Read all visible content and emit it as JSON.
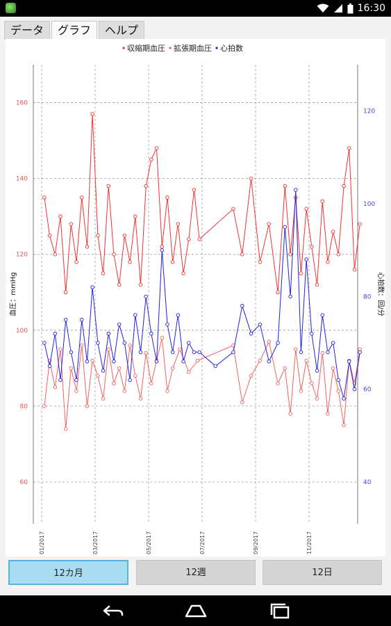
{
  "status_bar": {
    "time": "16:30",
    "icons": [
      "app-icon",
      "wifi-icon",
      "signal-icon",
      "battery-icon"
    ]
  },
  "tabs": [
    {
      "label": "データ",
      "active": false
    },
    {
      "label": "グラフ",
      "active": true
    },
    {
      "label": "ヘルプ",
      "active": false
    }
  ],
  "range_buttons": [
    {
      "label": "12カ月",
      "active": true
    },
    {
      "label": "12週",
      "active": false
    },
    {
      "label": "12日",
      "active": false
    }
  ],
  "nav_bar": {
    "icons": [
      "back-icon",
      "home-icon",
      "recents-icon"
    ]
  },
  "chart_data": {
    "type": "line",
    "legend": [
      "収縮期血圧",
      "拡張期血圧",
      "心拍数"
    ],
    "legend_placement": "top",
    "grid": true,
    "y_left": {
      "label": "血圧：mmHg",
      "range": [
        49,
        170
      ],
      "ticks": [
        60,
        80,
        100,
        120,
        140,
        160
      ],
      "color": "#e05555"
    },
    "y_right": {
      "label": "心拍数：回/分",
      "range": [
        31,
        130
      ],
      "ticks": [
        40,
        60,
        80,
        100,
        120
      ],
      "color": "#4444dd"
    },
    "x": {
      "ticks": [
        "01/2017",
        "03/2017",
        "05/2017",
        "07/2017",
        "09/2017",
        "11/2017"
      ]
    },
    "series": [
      {
        "name": "収縮期血圧",
        "axis": "left",
        "color": "#f03030",
        "points": [
          [
            "01/2017",
            135
          ],
          [
            "01/2017",
            125
          ],
          [
            "01/2017",
            120
          ],
          [
            "01/2017",
            130
          ],
          [
            "01/2017",
            110
          ],
          [
            "02/2017",
            128
          ],
          [
            "02/2017",
            118
          ],
          [
            "02/2017",
            135
          ],
          [
            "02/2017",
            122
          ],
          [
            "02/2017",
            157
          ],
          [
            "03/2017",
            125
          ],
          [
            "03/2017",
            115
          ],
          [
            "03/2017",
            138
          ],
          [
            "03/2017",
            120
          ],
          [
            "03/2017",
            112
          ],
          [
            "04/2017",
            125
          ],
          [
            "04/2017",
            118
          ],
          [
            "04/2017",
            130
          ],
          [
            "04/2017",
            112
          ],
          [
            "04/2017",
            138
          ],
          [
            "05/2017",
            145
          ],
          [
            "05/2017",
            148
          ],
          [
            "05/2017",
            122
          ],
          [
            "05/2017",
            135
          ],
          [
            "05/2017",
            118
          ],
          [
            "06/2017",
            128
          ],
          [
            "06/2017",
            115
          ],
          [
            "06/2017",
            124
          ],
          [
            "06/2017",
            137
          ],
          [
            "06/2017",
            124
          ],
          [
            "08/2017",
            132
          ],
          [
            "08/2017",
            120
          ],
          [
            "08/2017",
            140
          ],
          [
            "09/2017",
            118
          ],
          [
            "09/2017",
            128
          ],
          [
            "09/2017",
            110
          ],
          [
            "10/2017",
            138
          ],
          [
            "10/2017",
            120
          ],
          [
            "10/2017",
            135
          ],
          [
            "10/2017",
            115
          ],
          [
            "10/2017",
            132
          ],
          [
            "11/2017",
            122
          ],
          [
            "11/2017",
            112
          ],
          [
            "11/2017",
            134
          ],
          [
            "11/2017",
            118
          ],
          [
            "11/2017",
            126
          ],
          [
            "12/2017",
            120
          ],
          [
            "12/2017",
            138
          ],
          [
            "12/2017",
            148
          ],
          [
            "12/2017",
            116
          ],
          [
            "12/2017",
            128
          ]
        ]
      },
      {
        "name": "拡張期血圧",
        "axis": "left",
        "color": "#f06060",
        "points": [
          [
            "01/2017",
            80
          ],
          [
            "01/2017",
            92
          ],
          [
            "01/2017",
            85
          ],
          [
            "01/2017",
            95
          ],
          [
            "01/2017",
            74
          ],
          [
            "02/2017",
            90
          ],
          [
            "02/2017",
            84
          ],
          [
            "02/2017",
            96
          ],
          [
            "02/2017",
            80
          ],
          [
            "02/2017",
            92
          ],
          [
            "03/2017",
            88
          ],
          [
            "03/2017",
            82
          ],
          [
            "03/2017",
            95
          ],
          [
            "03/2017",
            86
          ],
          [
            "03/2017",
            90
          ],
          [
            "04/2017",
            84
          ],
          [
            "04/2017",
            96
          ],
          [
            "04/2017",
            88
          ],
          [
            "04/2017",
            82
          ],
          [
            "04/2017",
            94
          ],
          [
            "05/2017",
            86
          ],
          [
            "05/2017",
            92
          ],
          [
            "05/2017",
            98
          ],
          [
            "05/2017",
            84
          ],
          [
            "05/2017",
            90
          ],
          [
            "06/2017",
            95
          ],
          [
            "06/2017",
            89
          ],
          [
            "06/2017",
            92
          ],
          [
            "08/2017",
            96
          ],
          [
            "08/2017",
            81
          ],
          [
            "08/2017",
            88
          ],
          [
            "09/2017",
            92
          ],
          [
            "09/2017",
            97
          ],
          [
            "09/2017",
            86
          ],
          [
            "10/2017",
            90
          ],
          [
            "10/2017",
            78
          ],
          [
            "10/2017",
            95
          ],
          [
            "10/2017",
            84
          ],
          [
            "10/2017",
            92
          ],
          [
            "11/2017",
            86
          ],
          [
            "11/2017",
            82
          ],
          [
            "11/2017",
            94
          ],
          [
            "11/2017",
            78
          ],
          [
            "11/2017",
            90
          ],
          [
            "12/2017",
            84
          ],
          [
            "12/2017",
            75
          ],
          [
            "12/2017",
            92
          ],
          [
            "12/2017",
            86
          ],
          [
            "12/2017",
            95
          ]
        ]
      },
      {
        "name": "心拍数",
        "axis": "right",
        "color": "#2020e0",
        "points": [
          [
            "01/2017",
            70
          ],
          [
            "01/2017",
            65
          ],
          [
            "01/2017",
            72
          ],
          [
            "01/2017",
            62
          ],
          [
            "01/2017",
            75
          ],
          [
            "02/2017",
            68
          ],
          [
            "02/2017",
            62
          ],
          [
            "02/2017",
            75
          ],
          [
            "02/2017",
            66
          ],
          [
            "02/2017",
            82
          ],
          [
            "03/2017",
            70
          ],
          [
            "03/2017",
            64
          ],
          [
            "03/2017",
            72
          ],
          [
            "03/2017",
            66
          ],
          [
            "03/2017",
            74
          ],
          [
            "04/2017",
            70
          ],
          [
            "04/2017",
            62
          ],
          [
            "04/2017",
            76
          ],
          [
            "04/2017",
            68
          ],
          [
            "04/2017",
            80
          ],
          [
            "05/2017",
            72
          ],
          [
            "05/2017",
            66
          ],
          [
            "05/2017",
            90
          ],
          [
            "05/2017",
            74
          ],
          [
            "05/2017",
            68
          ],
          [
            "06/2017",
            76
          ],
          [
            "06/2017",
            66
          ],
          [
            "06/2017",
            70
          ],
          [
            "06/2017",
            68
          ],
          [
            "06/2017",
            68
          ],
          [
            "07/2017",
            65
          ],
          [
            "08/2017",
            68
          ],
          [
            "08/2017",
            78
          ],
          [
            "08/2017",
            72
          ],
          [
            "09/2017",
            74
          ],
          [
            "09/2017",
            66
          ],
          [
            "09/2017",
            70
          ],
          [
            "10/2017",
            95
          ],
          [
            "10/2017",
            80
          ],
          [
            "10/2017",
            103
          ],
          [
            "10/2017",
            68
          ],
          [
            "10/2017",
            88
          ],
          [
            "11/2017",
            72
          ],
          [
            "11/2017",
            64
          ],
          [
            "11/2017",
            76
          ],
          [
            "11/2017",
            68
          ],
          [
            "11/2017",
            70
          ],
          [
            "12/2017",
            62
          ],
          [
            "12/2017",
            58
          ],
          [
            "12/2017",
            66
          ],
          [
            "12/2017",
            60
          ],
          [
            "12/2017",
            68
          ]
        ]
      }
    ]
  }
}
